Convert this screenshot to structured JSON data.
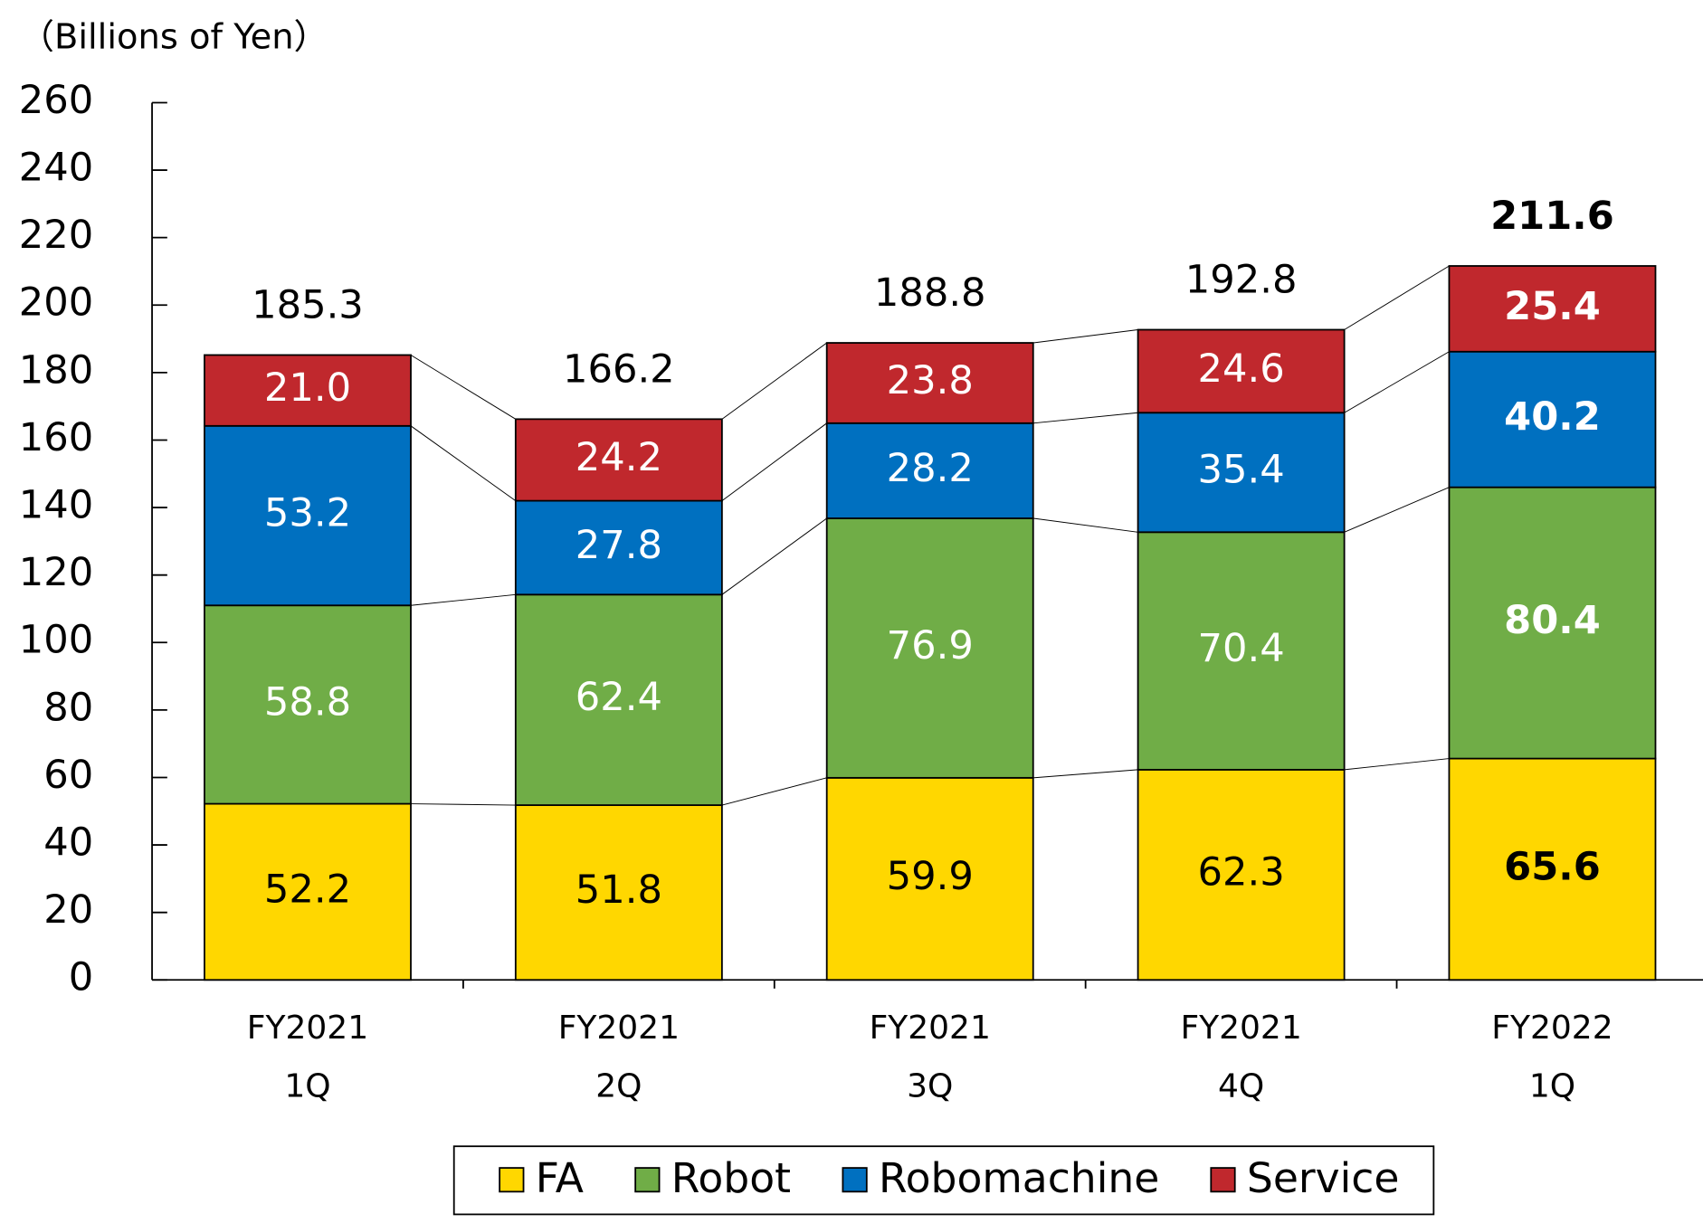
{
  "chart_data": {
    "type": "stacked_bar",
    "y_label": "（Billions of Yen）",
    "categories": [
      [
        "FY2021",
        "1Q"
      ],
      [
        "FY2021",
        "2Q"
      ],
      [
        "FY2021",
        "3Q"
      ],
      [
        "FY2021",
        "4Q"
      ],
      [
        "FY2022",
        "1Q"
      ]
    ],
    "series": [
      {
        "name": "FA",
        "color": "#ffd700",
        "label_color": "#000000",
        "values": [
          52.2,
          51.8,
          59.9,
          62.3,
          65.6
        ]
      },
      {
        "name": "Robot",
        "color": "#70ad47",
        "label_color": "#ffffff",
        "values": [
          58.8,
          62.4,
          76.9,
          70.4,
          80.4
        ]
      },
      {
        "name": "Robomachine",
        "color": "#0070c0",
        "label_color": "#ffffff",
        "values": [
          53.2,
          27.8,
          28.2,
          35.4,
          40.2
        ]
      },
      {
        "name": "Service",
        "color": "#c0282d",
        "label_color": "#ffffff",
        "values": [
          21.0,
          24.2,
          23.8,
          24.6,
          25.4
        ],
        "value_labels": [
          "21.0",
          "24.2",
          "23.8",
          "24.6",
          "25.4"
        ]
      }
    ],
    "totals": [
      185.3,
      166.2,
      188.8,
      192.8,
      211.6
    ],
    "ylim": [
      0,
      260
    ],
    "yticks": [
      0,
      20,
      40,
      60,
      80,
      100,
      120,
      140,
      160,
      180,
      200,
      220,
      240,
      260
    ],
    "legend": "bottom"
  }
}
